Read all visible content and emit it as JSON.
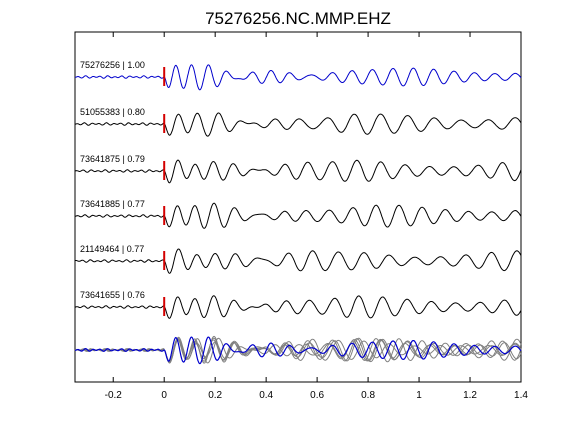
{
  "chart_data": {
    "type": "line",
    "title": "75276256.NC.MMP.EHZ",
    "xlabel": "",
    "ylabel": "",
    "xlim": [
      -0.35,
      1.4
    ],
    "xticks": [
      -0.2,
      0,
      0.2,
      0.4,
      0.6,
      0.8,
      1,
      1.2,
      1.4
    ],
    "xtick_labels": [
      "-0.2",
      "0",
      "0.2",
      "0.4",
      "0.6",
      "0.8",
      "1",
      "1.2",
      "1.4"
    ],
    "grid": false,
    "pick_time": 0,
    "pick_color": "#d40000",
    "traces": [
      {
        "label": "75276256 | 1.00",
        "event_id": "75276256",
        "correlation": 1.0,
        "color": "#0000cc",
        "f1": 16.0,
        "f2": 12.5,
        "ph": 0.2,
        "a": 0.7
      },
      {
        "label": "51055383 | 0.80",
        "event_id": "51055383",
        "correlation": 0.8,
        "color": "#000000",
        "f1": 13.0,
        "f2": 9.5,
        "ph": 1.1,
        "a": 0.8
      },
      {
        "label": "73641875 | 0.79",
        "event_id": "73641875",
        "correlation": 0.79,
        "color": "#000000",
        "f1": 14.0,
        "f2": 10.5,
        "ph": 2.0,
        "a": 0.85
      },
      {
        "label": "73641885 | 0.77",
        "event_id": "73641885",
        "correlation": 0.77,
        "color": "#000000",
        "f1": 14.0,
        "f2": 11.0,
        "ph": 0.7,
        "a": 0.85
      },
      {
        "label": "21149464 | 0.77",
        "event_id": "21149464",
        "correlation": 0.77,
        "color": "#000000",
        "f1": 13.5,
        "f2": 10.0,
        "ph": 2.6,
        "a": 0.8
      },
      {
        "label": "73641655 | 0.76",
        "event_id": "73641655",
        "correlation": 0.76,
        "color": "#000000",
        "f1": 14.0,
        "f2": 10.5,
        "ph": 1.5,
        "a": 0.85
      }
    ],
    "stack": {
      "description": "overlay",
      "main_color": "#0000cc",
      "others_color": "#808080"
    }
  }
}
